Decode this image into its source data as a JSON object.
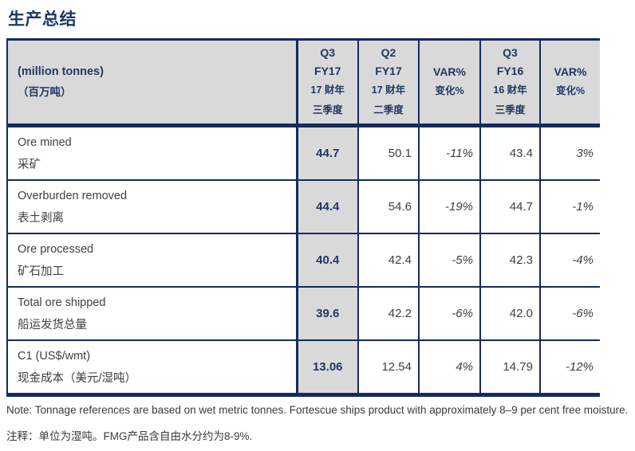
{
  "title": "生产总结",
  "colors": {
    "navy_text": "#1F3864",
    "border_navy": "#152A5E",
    "header_bg": "#D9D9D9",
    "body_text": "#3F3F3F"
  },
  "table": {
    "unit_label": {
      "en": "(million tonnes)",
      "zh": "（百万吨）"
    },
    "columns": [
      {
        "l1": "Q3",
        "l2": "FY17",
        "l3": "17 财年",
        "l4": "三季度"
      },
      {
        "l1": "Q2",
        "l2": "FY17",
        "l3": "17 财年",
        "l4": "二季度"
      },
      {
        "l1": "VAR%",
        "l2": "变化%"
      },
      {
        "l1": "Q3",
        "l2": "FY16",
        "l3": "16 财年",
        "l4": "三季度"
      },
      {
        "l1": "VAR%",
        "l2": "变化%"
      }
    ],
    "rows": [
      {
        "en": "Ore mined",
        "zh": "采矿",
        "values": [
          "44.7",
          "50.1",
          "-11%",
          "43.4",
          "3%"
        ]
      },
      {
        "en": "Overburden removed",
        "zh": "表土剥离",
        "values": [
          "44.4",
          "54.6",
          "-19%",
          "44.7",
          "-1%"
        ]
      },
      {
        "en": "Ore processed",
        "zh": "矿石加工",
        "values": [
          "40.4",
          "42.4",
          "-5%",
          "42.3",
          "-4%"
        ]
      },
      {
        "en": "Total ore shipped",
        "zh": "船运发货总量",
        "values": [
          "39.6",
          "42.2",
          "-6%",
          "42.0",
          "-6%"
        ]
      },
      {
        "en": "C1 (US$/wmt)",
        "zh": "现金成本（美元/湿吨）",
        "values": [
          "13.06",
          "12.54",
          "4%",
          "14.79",
          "-12%"
        ]
      }
    ]
  },
  "notes": {
    "en": "Note: Tonnage references are based on wet metric tonnes. Fortescue ships product with approximately 8–9 per cent free moisture.",
    "zh": "注释：单位为湿吨。FMG产品含自由水分约为8-9%."
  }
}
